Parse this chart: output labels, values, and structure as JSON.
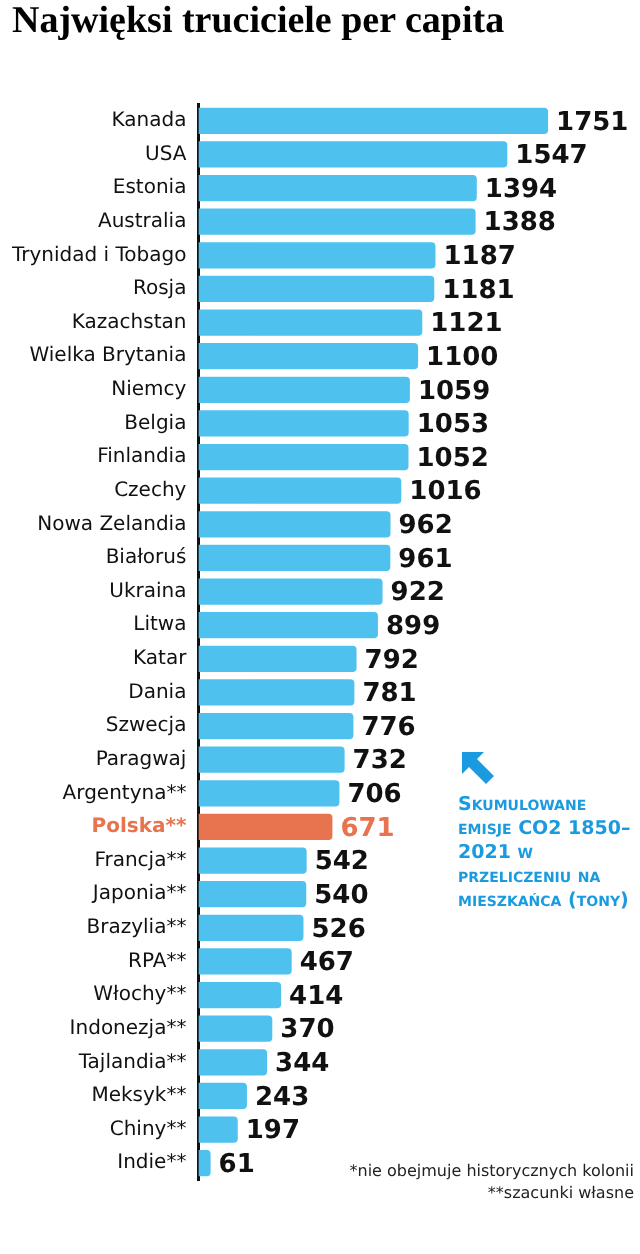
{
  "chart_data": {
    "type": "bar",
    "orientation": "horizontal",
    "title": "Najwięksi truciciele per capita",
    "categories": [
      "Kanada",
      "USA",
      "Estonia",
      "Australia",
      "Trynidad i Tobago",
      "Rosja",
      "Kazachstan",
      "Wielka Brytania",
      "Niemcy",
      "Belgia",
      "Finlandia",
      "Czechy",
      "Nowa Zelandia",
      "Białoruś",
      "Ukraina",
      "Litwa",
      "Katar",
      "Dania",
      "Szwecja",
      "Paragwaj",
      "Argentyna**",
      "Polska**",
      "Francja**",
      "Japonia**",
      "Brazylia**",
      "RPA**",
      "Włochy**",
      "Indonezja**",
      "Tajlandia**",
      "Meksyk**",
      "Chiny**",
      "Indie**"
    ],
    "values": [
      1751,
      1547,
      1394,
      1388,
      1187,
      1181,
      1121,
      1100,
      1059,
      1053,
      1052,
      1016,
      962,
      961,
      922,
      899,
      792,
      781,
      776,
      732,
      706,
      671,
      542,
      540,
      526,
      467,
      414,
      370,
      344,
      243,
      197,
      61
    ],
    "colors": [
      "#4fc1ef",
      "#4fc1ef",
      "#4fc1ef",
      "#4fc1ef",
      "#4fc1ef",
      "#4fc1ef",
      "#4fc1ef",
      "#4fc1ef",
      "#4fc1ef",
      "#4fc1ef",
      "#4fc1ef",
      "#4fc1ef",
      "#4fc1ef",
      "#4fc1ef",
      "#4fc1ef",
      "#4fc1ef",
      "#4fc1ef",
      "#4fc1ef",
      "#4fc1ef",
      "#4fc1ef",
      "#4fc1ef",
      "#e8734f",
      "#4fc1ef",
      "#4fc1ef",
      "#4fc1ef",
      "#4fc1ef",
      "#4fc1ef",
      "#4fc1ef",
      "#4fc1ef",
      "#4fc1ef",
      "#4fc1ef",
      "#4fc1ef"
    ],
    "data_labels": true,
    "grid": false,
    "legend": false,
    "tick_labels": "y",
    "annotations": [
      "Skumulowane emisje CO2 1850–2021 w przeliczeniu na mieszkańca (tony)",
      "*nie obejmuje historycznych kolonii",
      "**szacunki własne"
    ]
  }
}
